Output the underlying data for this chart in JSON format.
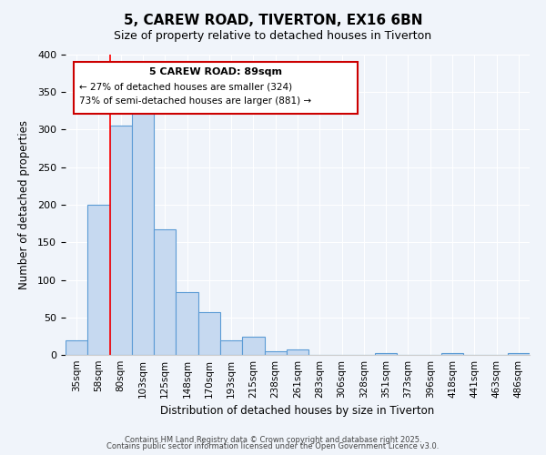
{
  "title": "5, CAREW ROAD, TIVERTON, EX16 6BN",
  "subtitle": "Size of property relative to detached houses in Tiverton",
  "xlabel": "Distribution of detached houses by size in Tiverton",
  "ylabel": "Number of detached properties",
  "bar_labels": [
    "35sqm",
    "58sqm",
    "80sqm",
    "103sqm",
    "125sqm",
    "148sqm",
    "170sqm",
    "193sqm",
    "215sqm",
    "238sqm",
    "261sqm",
    "283sqm",
    "306sqm",
    "328sqm",
    "351sqm",
    "373sqm",
    "396sqm",
    "418sqm",
    "441sqm",
    "463sqm",
    "486sqm"
  ],
  "bar_values": [
    20,
    200,
    305,
    330,
    167,
    84,
    57,
    20,
    24,
    5,
    7,
    0,
    0,
    0,
    3,
    0,
    0,
    2,
    0,
    0,
    2
  ],
  "bar_color": "#c6d9f0",
  "bar_edge_color": "#5b9bd5",
  "vline_x": 1.5,
  "vline_color": "#ff0000",
  "ylim": [
    0,
    400
  ],
  "yticks": [
    0,
    50,
    100,
    150,
    200,
    250,
    300,
    350,
    400
  ],
  "annotation_title": "5 CAREW ROAD: 89sqm",
  "annotation_line1": "← 27% of detached houses are smaller (324)",
  "annotation_line2": "73% of semi-detached houses are larger (881) →",
  "footer1": "Contains HM Land Registry data © Crown copyright and database right 2025.",
  "footer2": "Contains public sector information licensed under the Open Government Licence v3.0.",
  "background_color": "#f0f4fa",
  "plot_background": "#f0f4fa"
}
